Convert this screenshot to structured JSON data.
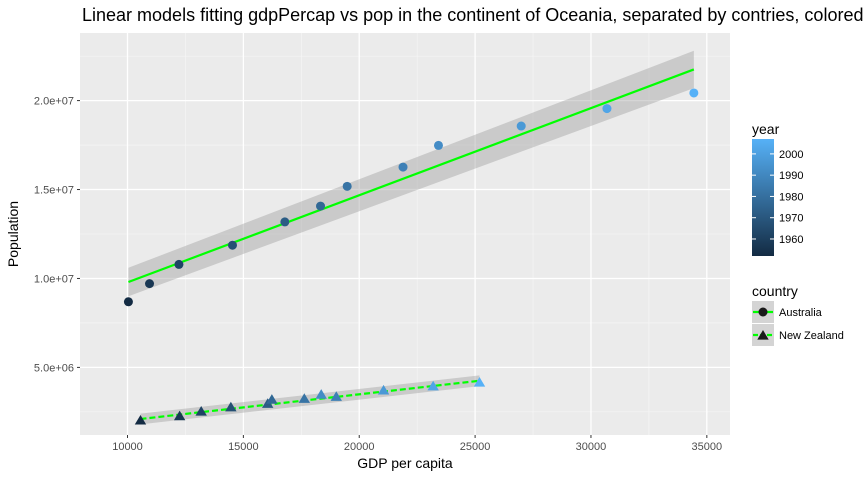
{
  "chart_data": {
    "type": "scatter",
    "title": "Linear models fitting gdpPercap vs pop in the continent of Oceania, separated by contries, colored by year",
    "xlabel": "GDP per capita",
    "ylabel": "Population",
    "xlim": [
      7950,
      36000
    ],
    "ylim": [
      1200000,
      23800000
    ],
    "x_ticks": [
      10000,
      15000,
      20000,
      25000,
      30000,
      35000
    ],
    "x_tick_labels": [
      "10000",
      "15000",
      "20000",
      "25000",
      "30000",
      "35000"
    ],
    "y_ticks": [
      5000000,
      10000000,
      15000000,
      20000000
    ],
    "y_tick_labels": [
      "5.0e+06",
      "1.0e+07",
      "1.5e+07",
      "2.0e+07"
    ],
    "grid": true,
    "color_legend": {
      "title": "year",
      "range": [
        1952,
        2007
      ],
      "ticks": [
        1960,
        1970,
        1980,
        1990,
        2000
      ],
      "tick_labels": [
        "1960",
        "1970",
        "1980",
        "1990",
        "2000"
      ],
      "low_color": "#132B43",
      "high_color": "#56B1F7"
    },
    "series": [
      {
        "name": "Australia",
        "marker": "circle",
        "line_style": "solid",
        "line_color": "#00ff00",
        "points": [
          {
            "year": 1952,
            "x": 10040,
            "y": 8690000
          },
          {
            "year": 1957,
            "x": 10950,
            "y": 9710000
          },
          {
            "year": 1962,
            "x": 12220,
            "y": 10790000
          },
          {
            "year": 1967,
            "x": 14530,
            "y": 11870000
          },
          {
            "year": 1972,
            "x": 16790,
            "y": 13180000
          },
          {
            "year": 1977,
            "x": 18330,
            "y": 14070000
          },
          {
            "year": 1982,
            "x": 19480,
            "y": 15180000
          },
          {
            "year": 1987,
            "x": 21890,
            "y": 16260000
          },
          {
            "year": 1992,
            "x": 23420,
            "y": 17480000
          },
          {
            "year": 1997,
            "x": 26990,
            "y": 18570000
          },
          {
            "year": 2002,
            "x": 30690,
            "y": 19550000
          },
          {
            "year": 2007,
            "x": 34440,
            "y": 20430000
          }
        ],
        "fit": {
          "x": [
            10040,
            34440
          ],
          "y": [
            9800000,
            21750000
          ]
        },
        "ci_band": {
          "x": [
            10040,
            34440
          ],
          "y_low": [
            9000000,
            20700000
          ],
          "y_high": [
            10600000,
            22800000
          ]
        }
      },
      {
        "name": "New Zealand",
        "marker": "triangle",
        "line_style": "dashed",
        "line_color": "#00ff00",
        "points": [
          {
            "year": 1952,
            "x": 10560,
            "y": 1990000
          },
          {
            "year": 1957,
            "x": 12250,
            "y": 2230000
          },
          {
            "year": 1962,
            "x": 13180,
            "y": 2490000
          },
          {
            "year": 1967,
            "x": 14460,
            "y": 2730000
          },
          {
            "year": 1972,
            "x": 16050,
            "y": 2930000
          },
          {
            "year": 1977,
            "x": 16230,
            "y": 3160000
          },
          {
            "year": 1982,
            "x": 17630,
            "y": 3210000
          },
          {
            "year": 1987,
            "x": 19010,
            "y": 3320000
          },
          {
            "year": 1992,
            "x": 18360,
            "y": 3440000
          },
          {
            "year": 1997,
            "x": 21050,
            "y": 3680000
          },
          {
            "year": 2002,
            "x": 23190,
            "y": 3910000
          },
          {
            "year": 2007,
            "x": 25190,
            "y": 4120000
          }
        ],
        "fit": {
          "x": [
            10560,
            25190
          ],
          "y": [
            2100000,
            4250000
          ]
        },
        "ci_band": {
          "x": [
            10560,
            25190
          ],
          "y_low": [
            1800000,
            3950000
          ],
          "y_high": [
            2400000,
            4550000
          ]
        }
      }
    ],
    "shape_legend": {
      "title": "country",
      "entries": [
        "Australia",
        "New Zealand"
      ]
    }
  }
}
